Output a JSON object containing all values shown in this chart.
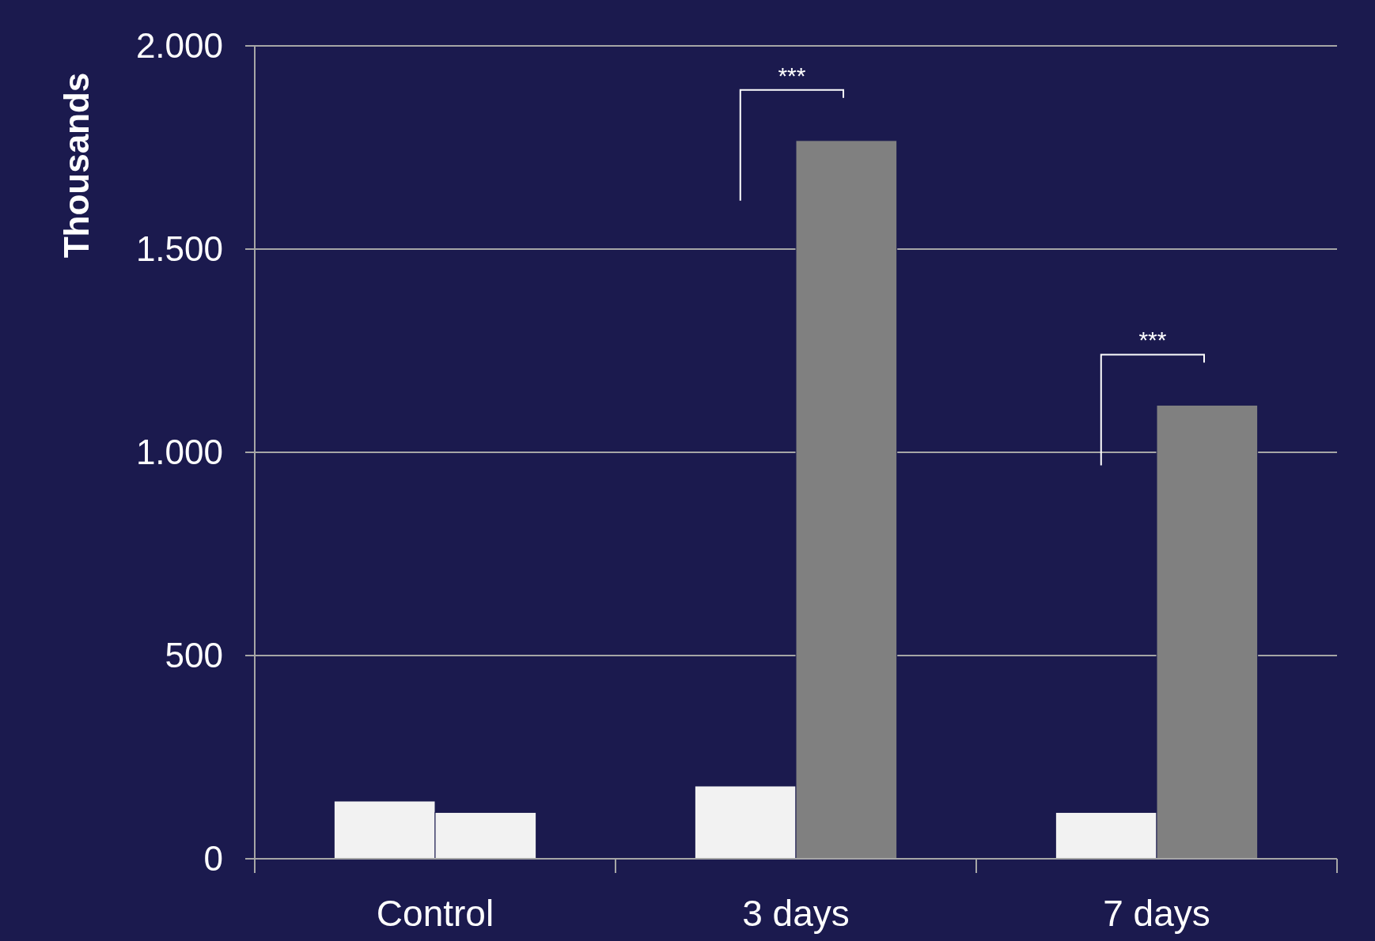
{
  "chart_data": {
    "type": "bar",
    "ylabel": "Thousands",
    "categories": [
      "Control",
      "3 days",
      "7 days"
    ],
    "series": [
      {
        "color": "#f2f2f2",
        "values": [
          142,
          179,
          114
        ]
      },
      {
        "colors": [
          "#f2f2f2",
          "#808080",
          "#808080"
        ],
        "values": [
          114,
          1767,
          1116
        ]
      }
    ],
    "ylim": [
      0,
      2000
    ],
    "yticks": [
      0,
      500,
      {
        "value": 1000,
        "label": "1.000"
      },
      {
        "value": 1500,
        "label": "1.500"
      },
      {
        "value": 2000,
        "label": "2.000"
      }
    ],
    "grid": "y",
    "annotations": [
      "***",
      "***"
    ]
  }
}
